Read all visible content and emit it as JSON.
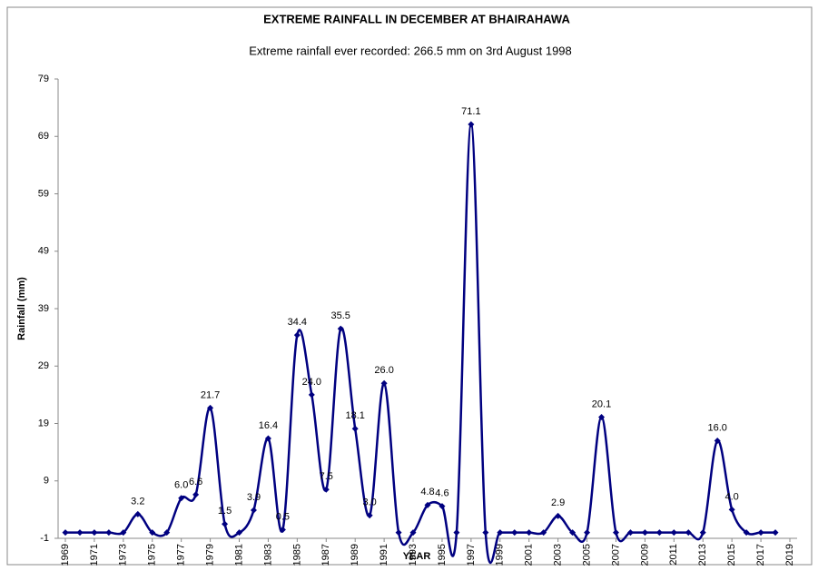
{
  "chart_data": {
    "type": "line",
    "title": "EXTREME RAINFALL IN DECEMBER AT BHAIRAHAWA",
    "subtitle": "Extreme rainfall ever recorded: 266.5 mm on 3rd August 1998",
    "x_label": "YEAR",
    "y_label": "Rainfall (mm)",
    "x": [
      1969,
      1970,
      1971,
      1972,
      1973,
      1974,
      1975,
      1976,
      1977,
      1978,
      1979,
      1980,
      1981,
      1982,
      1983,
      1984,
      1985,
      1986,
      1987,
      1988,
      1989,
      1990,
      1991,
      1992,
      1993,
      1994,
      1995,
      1996,
      1997,
      1998,
      1999,
      2000,
      2001,
      2002,
      2003,
      2004,
      2005,
      2006,
      2007,
      2008,
      2009,
      2010,
      2011,
      2012,
      2013,
      2014,
      2015,
      2016,
      2017,
      2018
    ],
    "series": [
      {
        "name": "Rainfall",
        "color": "#000080",
        "values": [
          0,
          0,
          0,
          0,
          0,
          3.2,
          0,
          0,
          6.0,
          6.6,
          21.7,
          1.5,
          0,
          3.9,
          16.4,
          0.5,
          34.4,
          24.0,
          7.5,
          35.5,
          18.1,
          3.0,
          26.0,
          0,
          0,
          4.8,
          4.6,
          0,
          71.1,
          0,
          0,
          0,
          0,
          0,
          2.9,
          0,
          0,
          20.1,
          0,
          0,
          0,
          0,
          0,
          0,
          0,
          16.0,
          4.0,
          0,
          0,
          0
        ],
        "value_labels": [
          null,
          null,
          null,
          null,
          null,
          "3.2",
          null,
          null,
          "6.0",
          "6.6",
          "21.7",
          "1.5",
          null,
          "3.9",
          "16.4",
          "0.5",
          "34.4",
          "24.0",
          "7.5",
          "35.5",
          "18.1",
          "3.0",
          "26.0",
          null,
          null,
          "4.8",
          "4.6",
          null,
          "71.1",
          null,
          null,
          null,
          null,
          null,
          "2.9",
          null,
          null,
          "20.1",
          null,
          null,
          null,
          null,
          null,
          null,
          null,
          "16.0",
          "4.0",
          null,
          null,
          null
        ]
      }
    ],
    "xlim": [
      1969,
      2019
    ],
    "xticks": [
      1969,
      1971,
      1973,
      1975,
      1977,
      1979,
      1981,
      1983,
      1985,
      1987,
      1989,
      1991,
      1993,
      1995,
      1997,
      1999,
      2001,
      2003,
      2005,
      2007,
      2009,
      2011,
      2013,
      2015,
      2017,
      2019
    ],
    "ylim": [
      -1,
      79
    ],
    "yticks": [
      -1,
      9,
      19,
      29,
      39,
      49,
      59,
      69,
      79
    ]
  }
}
